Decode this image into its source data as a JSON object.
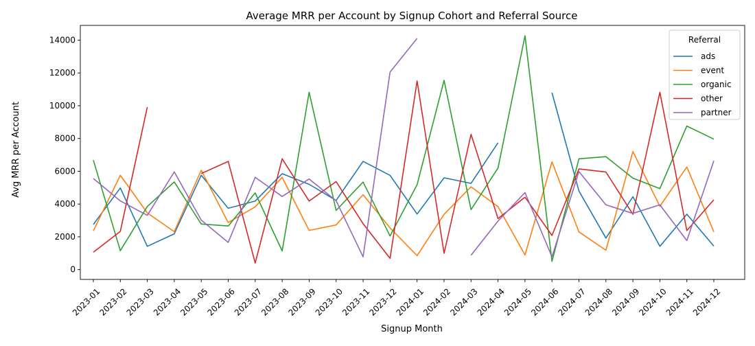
{
  "chart_data": {
    "type": "line",
    "title": "Average MRR per Account by Signup Cohort and Referral Source",
    "xlabel": "Signup Month",
    "ylabel": "Avg MRR per Account",
    "ylim": [
      -600,
      14900
    ],
    "yticks": [
      0,
      2000,
      4000,
      6000,
      8000,
      10000,
      12000,
      14000
    ],
    "grid": false,
    "legend_title": "Referral",
    "legend_position": "top-right",
    "categories": [
      "2023-01",
      "2023-02",
      "2023-03",
      "2023-04",
      "2023-05",
      "2023-06",
      "2023-07",
      "2023-08",
      "2023-09",
      "2023-10",
      "2023-11",
      "2023-12",
      "2024-01",
      "2024-02",
      "2024-03",
      "2024-04",
      "2024-05",
      "2024-06",
      "2024-07",
      "2024-08",
      "2024-09",
      "2024-10",
      "2024-11",
      "2024-12"
    ],
    "series": [
      {
        "name": "ads",
        "color": "#1f77b4",
        "values": [
          2750,
          4980,
          1420,
          2180,
          5760,
          3740,
          4180,
          5850,
          5200,
          4220,
          6600,
          5750,
          3390,
          5600,
          5260,
          7740,
          null,
          10790,
          4790,
          1920,
          4450,
          1420,
          3380,
          1430
        ]
      },
      {
        "name": "event",
        "color": "#ff7f0e",
        "values": [
          2360,
          5750,
          3460,
          2310,
          6060,
          2870,
          3830,
          5630,
          2390,
          2720,
          4570,
          2540,
          850,
          3370,
          5050,
          3840,
          890,
          6570,
          2300,
          1180,
          7200,
          3860,
          6260,
          2300
        ]
      },
      {
        "name": "organic",
        "color": "#2ca02c",
        "values": [
          6680,
          1150,
          3850,
          5350,
          2780,
          2660,
          4680,
          1140,
          10820,
          3610,
          5340,
          2050,
          5180,
          11550,
          3660,
          6200,
          14270,
          500,
          6760,
          6890,
          5580,
          4940,
          8760,
          7960
        ]
      },
      {
        "name": "other",
        "color": "#d62728",
        "values": [
          1060,
          2330,
          9910,
          null,
          5860,
          6600,
          400,
          6760,
          4180,
          5370,
          2800,
          680,
          11510,
          990,
          8250,
          3110,
          4420,
          2080,
          6140,
          5950,
          3370,
          10820,
          2380,
          4260
        ]
      },
      {
        "name": "partner",
        "color": "#9467bd",
        "values": [
          5560,
          4190,
          3310,
          5960,
          3020,
          1660,
          5630,
          4460,
          5530,
          4200,
          780,
          12050,
          14110,
          null,
          880,
          2960,
          4700,
          780,
          5980,
          3950,
          3430,
          3950,
          1770,
          6640
        ]
      }
    ]
  }
}
